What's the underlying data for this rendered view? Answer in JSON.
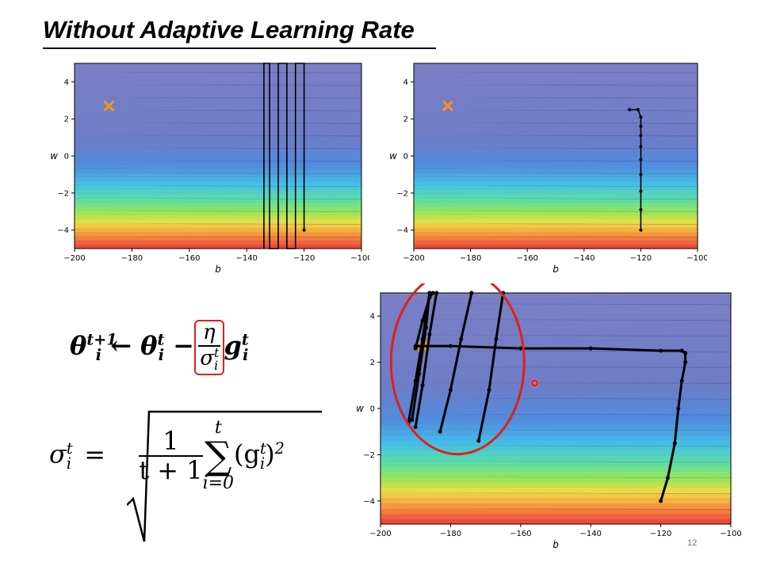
{
  "title": "Without Adaptive Learning Rate",
  "page_number": "12",
  "equations": {
    "update_lhs": "θ",
    "update_lhs_sup": "t+1",
    "update_lhs_sub": "i",
    "arrow": "←",
    "theta": "θ",
    "theta_sup": "t",
    "theta_sub": "i",
    "minus": "−",
    "eta": "η",
    "sigma": "σ",
    "sigma_sup": "t",
    "sigma_sub": "i",
    "g": "g",
    "g_sup": "t",
    "g_sub": "i",
    "sigma_def_lhs": "σ",
    "sigma_def_sup": "t",
    "sigma_def_sub": "i",
    "equals": "=",
    "frac_num": "1",
    "frac_den": "t + 1",
    "sum_top": "t",
    "sum_symbol": "∑",
    "sum_bottom": "i=0",
    "term": "(g",
    "term_sup": "t",
    "term_sub": "i",
    "term_close": ")",
    "term_power": "2"
  },
  "colors": {
    "target_marker": "#f7941d",
    "trajectory": "#000000",
    "highlight": "#e0201b",
    "contour_top": "#7b7fc3"
  },
  "chart_data": [
    {
      "type": "line",
      "title": "",
      "xlabel": "b",
      "ylabel": "w",
      "xlim": [
        -200,
        -100
      ],
      "ylim": [
        -5,
        5
      ],
      "xticks": [
        "−200",
        "−180",
        "−160",
        "−140",
        "−120",
        "−100"
      ],
      "yticks": [
        "4",
        "2",
        "0",
        "−2",
        "−4"
      ],
      "background": "filled contour (loss)",
      "target": {
        "x": -188,
        "y": 2.7
      },
      "series": [
        {
          "x": [
            -120,
            -120,
            -123,
            -123,
            -126,
            -126,
            -129,
            -129,
            -132,
            -132,
            -134,
            -134
          ],
          "y": [
            -4,
            5,
            5,
            -5,
            -5,
            5,
            5,
            -5,
            -5,
            5,
            5,
            -5
          ]
        }
      ]
    },
    {
      "type": "line",
      "title": "",
      "xlabel": "b",
      "ylabel": "w",
      "xlim": [
        -200,
        -100
      ],
      "ylim": [
        -5,
        5
      ],
      "xticks": [
        "−200",
        "−180",
        "−160",
        "−140",
        "−120",
        "−100"
      ],
      "yticks": [
        "4",
        "2",
        "0",
        "−2",
        "−4"
      ],
      "background": "filled contour (loss)",
      "target": {
        "x": -188,
        "y": 2.7
      },
      "series": [
        {
          "x": [
            -120,
            -120,
            -120,
            -120,
            -120,
            -120,
            -120,
            -120,
            -120,
            -121,
            -124
          ],
          "y": [
            -4,
            -2.9,
            -1.9,
            -1.0,
            -0.2,
            0.5,
            1.1,
            1.6,
            2.1,
            2.5,
            2.5
          ],
          "markers": true
        }
      ]
    },
    {
      "type": "line",
      "title": "",
      "xlabel": "b",
      "ylabel": "w",
      "xlim": [
        -200,
        -100
      ],
      "ylim": [
        -5,
        5
      ],
      "xticks": [
        "−200",
        "−180",
        "−160",
        "−140",
        "−120",
        "−100"
      ],
      "yticks": [
        "4",
        "2",
        "0",
        "−2",
        "−4"
      ],
      "background": "filled contour (loss)",
      "target": {
        "x": -188,
        "y": 2.7
      },
      "series": [
        {
          "x": [
            -120,
            -118,
            -116,
            -115,
            -114,
            -113,
            -113,
            -114,
            -120,
            -140,
            -160,
            -180,
            -190,
            -190
          ],
          "y": [
            -4,
            -3,
            -1.5,
            0,
            1.2,
            2,
            2.4,
            2.5,
            2.5,
            2.6,
            2.6,
            2.7,
            2.7,
            2.6
          ],
          "markers": true
        },
        {
          "x": [
            -190,
            -188,
            -186,
            -185
          ],
          "y": [
            2.6,
            3.8,
            4.8,
            5
          ]
        },
        {
          "x": [
            -191,
            -189,
            -187,
            -186
          ],
          "y": [
            -0.5,
            1.5,
            3.5,
            5
          ]
        },
        {
          "x": [
            -192,
            -190,
            -188,
            -186
          ],
          "y": [
            -0.6,
            1.2,
            3.0,
            5
          ]
        },
        {
          "x": [
            -190,
            -188,
            -186,
            -184
          ],
          "y": [
            -0.8,
            1.0,
            3.2,
            5
          ]
        },
        {
          "x": [
            -183,
            -180,
            -177,
            -174
          ],
          "y": [
            -1.0,
            0.8,
            3.0,
            5
          ]
        },
        {
          "x": [
            -172,
            -169,
            -167,
            -165
          ],
          "y": [
            -1.4,
            0.8,
            3.0,
            5
          ]
        }
      ],
      "annotations": [
        {
          "type": "ellipse-highlight",
          "cx": -178,
          "cy": 2.0
        },
        {
          "type": "point-highlight",
          "x": -156,
          "y": 1.1
        }
      ]
    }
  ]
}
